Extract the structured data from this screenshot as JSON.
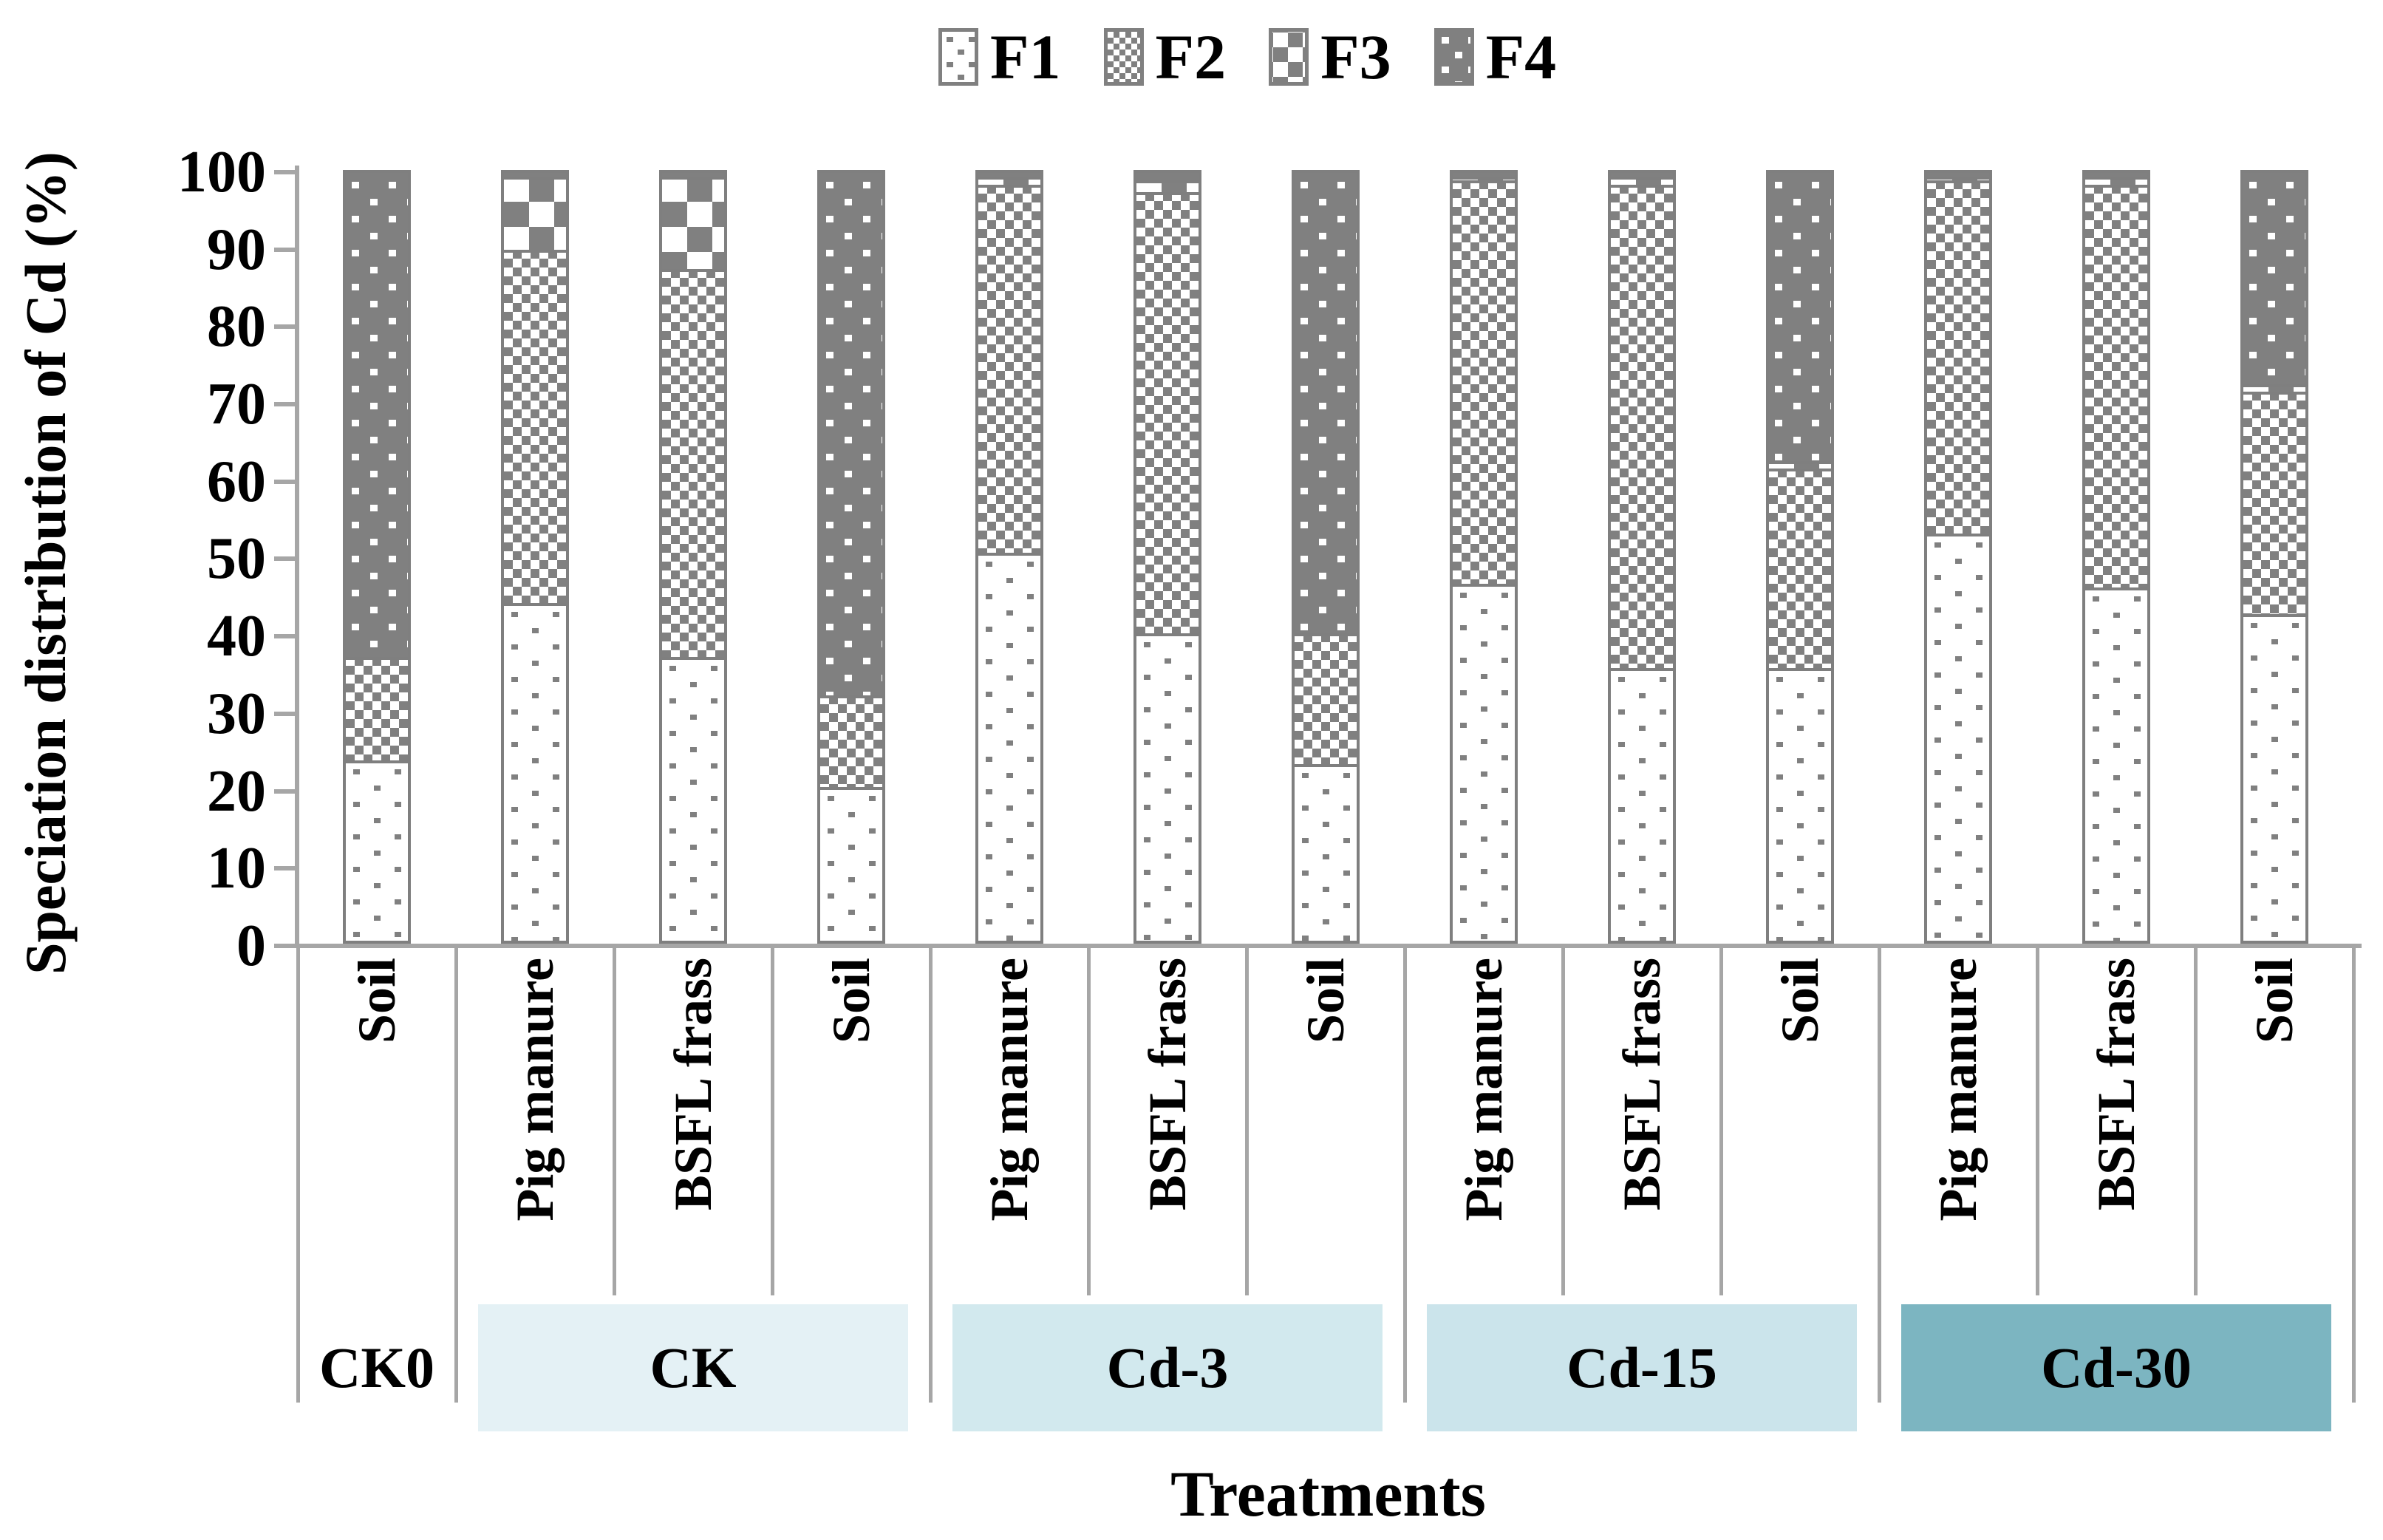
{
  "chart_data": {
    "type": "bar",
    "stacked": true,
    "title": "",
    "ylabel": "Speciation distribution of Cd (%)",
    "xlabel": "Treatments",
    "ylim": [
      0,
      100
    ],
    "ytick_step": 10,
    "ytick_labels": [
      "0",
      "10",
      "20",
      "30",
      "40",
      "50",
      "60",
      "70",
      "80",
      "90",
      "100"
    ],
    "grid": false,
    "legend": {
      "position": "top",
      "entries": [
        {
          "label": "F1",
          "pattern": "f1"
        },
        {
          "label": "F2",
          "pattern": "f2"
        },
        {
          "label": "F3",
          "pattern": "f3"
        },
        {
          "label": "F4",
          "pattern": "f4"
        }
      ]
    },
    "series_order": [
      "F1",
      "F2",
      "F3",
      "F4"
    ],
    "groups": [
      {
        "label": "CK0",
        "box_color": "",
        "bars": [
          {
            "label": "Soil",
            "values": {
              "F1": 23.5,
              "F2": 13.5,
              "F3": 0,
              "F4": 63
            }
          }
        ]
      },
      {
        "label": "CK",
        "box_color": "#e4f1f5",
        "bars": [
          {
            "label": "Pig manure",
            "values": {
              "F1": 44,
              "F2": 46,
              "F3": 9.5,
              "F4": 0.5
            }
          },
          {
            "label": "BSFL frass",
            "values": {
              "F1": 37,
              "F2": 50.5,
              "F3": 12,
              "F4": 0.5
            }
          },
          {
            "label": "Soil",
            "values": {
              "F1": 20,
              "F2": 12,
              "F3": 0,
              "F4": 68
            }
          }
        ]
      },
      {
        "label": "Cd-3",
        "box_color": "#d2e9ee",
        "bars": [
          {
            "label": "Pig manure",
            "values": {
              "F1": 50.5,
              "F2": 48,
              "F3": 1,
              "F4": 0.5
            }
          },
          {
            "label": "BSFL frass",
            "values": {
              "F1": 40,
              "F2": 57.5,
              "F3": 1.5,
              "F4": 1
            }
          },
          {
            "label": "Soil",
            "values": {
              "F1": 23,
              "F2": 17,
              "F3": 0,
              "F4": 60
            }
          }
        ]
      },
      {
        "label": "Cd-15",
        "box_color": "#cbe4eb",
        "bars": [
          {
            "label": "Pig manure",
            "values": {
              "F1": 46.5,
              "F2": 52.5,
              "F3": 0.5,
              "F4": 0.5
            }
          },
          {
            "label": "BSFL frass",
            "values": {
              "F1": 35.5,
              "F2": 63,
              "F3": 1,
              "F4": 0.5
            }
          },
          {
            "label": "Soil",
            "values": {
              "F1": 35.5,
              "F2": 26,
              "F3": 1,
              "F4": 37.5
            }
          }
        ]
      },
      {
        "label": "Cd-30",
        "box_color": "#7cb5c1",
        "bars": [
          {
            "label": "Pig manure",
            "values": {
              "F1": 53,
              "F2": 46,
              "F3": 0.5,
              "F4": 0.5
            }
          },
          {
            "label": "BSFL frass",
            "values": {
              "F1": 46,
              "F2": 52.5,
              "F3": 1,
              "F4": 0.5
            }
          },
          {
            "label": "Soil",
            "values": {
              "F1": 42.5,
              "F2": 29,
              "F3": 1,
              "F4": 27.5
            }
          }
        ]
      }
    ],
    "colors": {
      "pattern_gray": "#808080",
      "bar_border": "#7f7f7f",
      "axis": "#a6a6a6",
      "text": "#000000"
    }
  }
}
